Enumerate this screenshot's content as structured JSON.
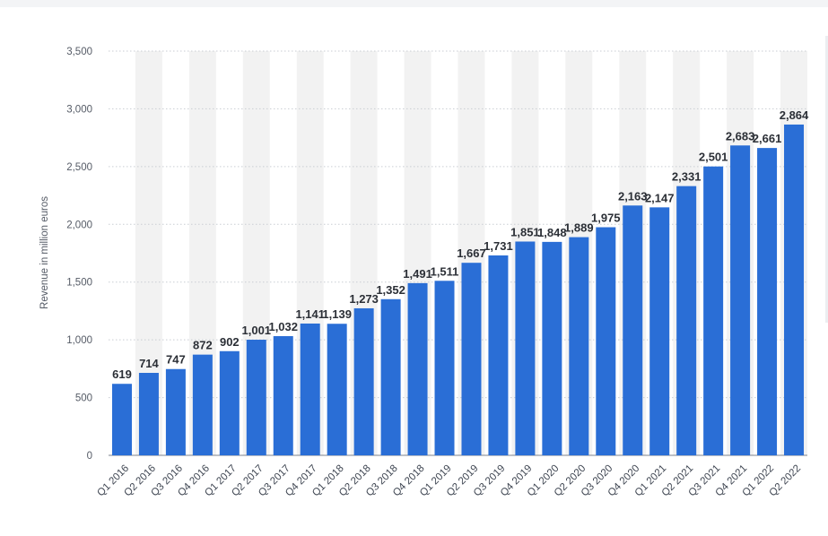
{
  "chart_data": {
    "type": "bar",
    "ylabel": "Revenue in million euros",
    "xlabel": "",
    "ylim": [
      0,
      3500
    ],
    "yticks": [
      0,
      500,
      1000,
      1500,
      2000,
      2500,
      3000,
      3500
    ],
    "ytick_labels": [
      "0",
      "500",
      "1,000",
      "1,500",
      "2,000",
      "2,500",
      "3,000",
      "3,500"
    ],
    "grid": true,
    "categories": [
      "Q1 2016",
      "Q2 2016",
      "Q3 2016",
      "Q4 2016",
      "Q1 2017",
      "Q2 2017",
      "Q3 2017",
      "Q4 2017",
      "Q1 2018",
      "Q2 2018",
      "Q3 2018",
      "Q4 2018",
      "Q1 2019",
      "Q2 2019",
      "Q3 2019",
      "Q4 2019",
      "Q1 2020",
      "Q2 2020",
      "Q3 2020",
      "Q4 2020",
      "Q1 2021",
      "Q2 2021",
      "Q3 2021",
      "Q4 2021",
      "Q1 2022",
      "Q2 2022"
    ],
    "values": [
      619,
      714,
      747,
      872,
      902,
      1001,
      1032,
      1141,
      1139,
      1273,
      1352,
      1491,
      1511,
      1667,
      1731,
      1851,
      1848,
      1889,
      1975,
      2163,
      2147,
      2331,
      2501,
      2683,
      2661,
      2864
    ],
    "value_labels": [
      "619",
      "714",
      "747",
      "872",
      "902",
      "1,001",
      "1,032",
      "1,141",
      "1,139",
      "1,273",
      "1,352",
      "1,491",
      "1,511",
      "1,667",
      "1,731",
      "1,851",
      "1,848",
      "1,889",
      "1,975",
      "2,163",
      "2,147",
      "2,331",
      "2,501",
      "2,683",
      "2,661",
      "2,864"
    ],
    "colors": {
      "bar": "#2a6ed6",
      "band": "#f2f2f2",
      "grid": "#c9cdd3",
      "baseline": "#7d838c"
    }
  }
}
